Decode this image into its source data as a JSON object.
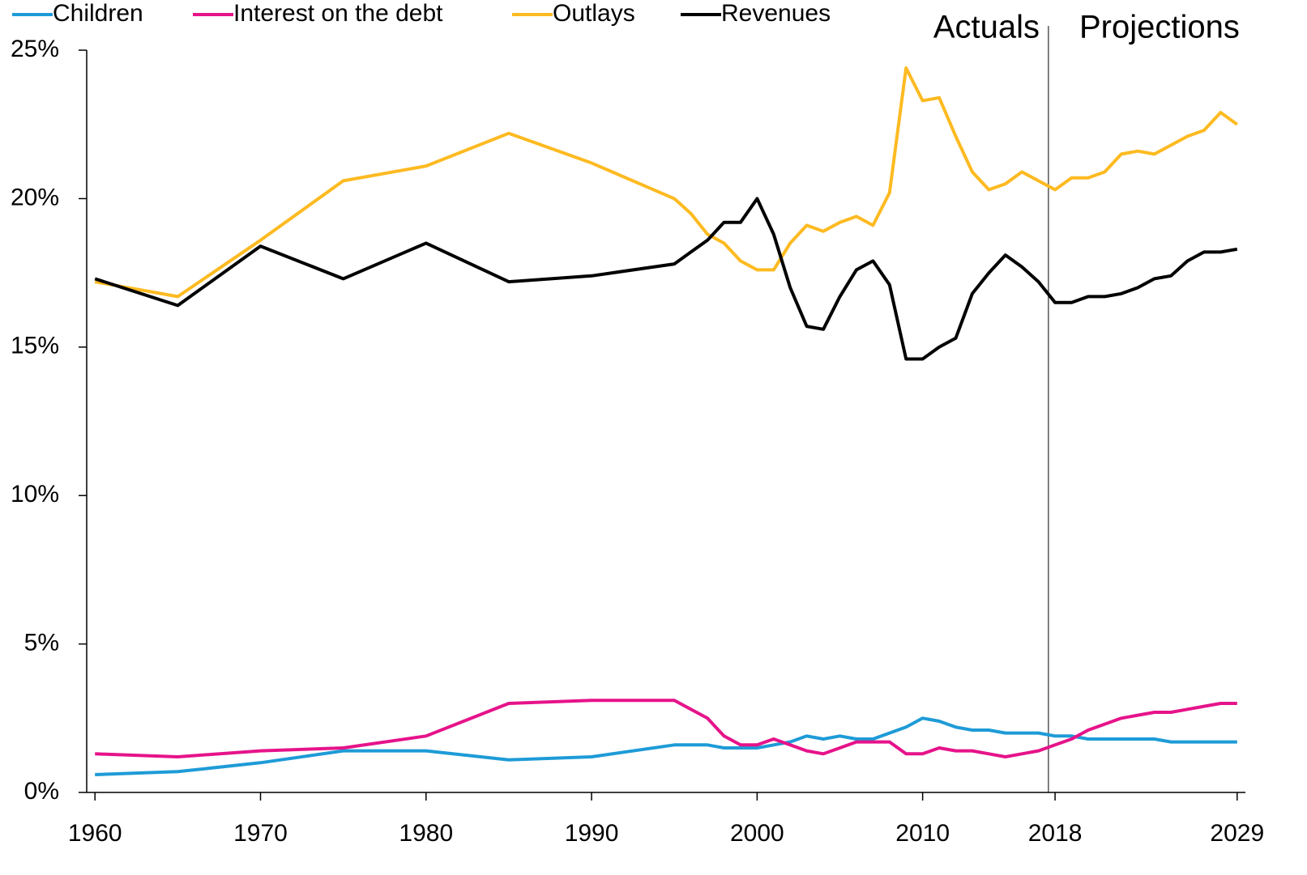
{
  "chart_data": {
    "type": "line",
    "x": [
      1960,
      1965,
      1970,
      1975,
      1980,
      1985,
      1990,
      1995,
      1996,
      1997,
      1998,
      1999,
      2000,
      2001,
      2002,
      2003,
      2004,
      2005,
      2006,
      2007,
      2008,
      2009,
      2010,
      2011,
      2012,
      2013,
      2014,
      2015,
      2016,
      2017,
      2018,
      2019,
      2020,
      2021,
      2022,
      2023,
      2024,
      2025,
      2026,
      2027,
      2028,
      2029
    ],
    "series": [
      {
        "name": "Children",
        "color": "#1e9bd7",
        "values": [
          0.6,
          0.7,
          1.0,
          1.4,
          1.4,
          1.1,
          1.2,
          1.6,
          1.6,
          1.6,
          1.5,
          1.5,
          1.5,
          1.6,
          1.7,
          1.9,
          1.8,
          1.9,
          1.8,
          1.8,
          2.0,
          2.2,
          2.5,
          2.4,
          2.2,
          2.1,
          2.1,
          2.0,
          2.0,
          2.0,
          1.9,
          1.9,
          1.8,
          1.8,
          1.8,
          1.8,
          1.8,
          1.7,
          1.7,
          1.7,
          1.7,
          1.7
        ]
      },
      {
        "name": "Interest on the debt",
        "color": "#e6138a",
        "values": [
          1.3,
          1.2,
          1.4,
          1.5,
          1.9,
          3.0,
          3.1,
          3.1,
          2.8,
          2.5,
          1.9,
          1.6,
          1.6,
          1.8,
          1.6,
          1.4,
          1.3,
          1.5,
          1.7,
          1.7,
          1.7,
          1.3,
          1.3,
          1.5,
          1.4,
          1.4,
          1.3,
          1.2,
          1.3,
          1.4,
          1.6,
          1.8,
          2.1,
          2.3,
          2.5,
          2.6,
          2.7,
          2.7,
          2.8,
          2.9,
          3.0,
          3.0
        ]
      },
      {
        "name": "Outlays",
        "color": "#fdba21",
        "values": [
          17.2,
          16.7,
          18.6,
          20.6,
          21.1,
          22.2,
          21.2,
          20.0,
          19.5,
          18.8,
          18.5,
          17.9,
          17.6,
          17.6,
          18.5,
          19.1,
          18.9,
          19.2,
          19.4,
          19.1,
          20.2,
          24.4,
          23.3,
          23.4,
          22.1,
          20.9,
          20.3,
          20.5,
          20.9,
          20.6,
          20.3,
          20.7,
          20.7,
          20.9,
          21.5,
          21.6,
          21.5,
          21.8,
          22.1,
          22.3,
          22.9,
          22.5
        ]
      },
      {
        "name": "Revenues",
        "color": "#000000",
        "values": [
          17.3,
          16.4,
          18.4,
          17.3,
          18.5,
          17.2,
          17.4,
          17.8,
          18.2,
          18.6,
          19.2,
          19.2,
          20.0,
          18.8,
          17.0,
          15.7,
          15.6,
          16.7,
          17.6,
          17.9,
          17.1,
          14.6,
          14.6,
          15.0,
          15.3,
          16.8,
          17.5,
          18.1,
          17.7,
          17.2,
          16.5,
          16.5,
          16.7,
          16.7,
          16.8,
          17.0,
          17.3,
          17.4,
          17.9,
          18.2,
          18.2,
          18.3
        ]
      }
    ],
    "xlim": [
      1959.5,
      2029.5
    ],
    "xticks": [
      1960,
      1970,
      1980,
      1990,
      2000,
      2010,
      2018,
      2029
    ],
    "ylim": [
      0,
      25
    ],
    "yticks": [
      {
        "value": 0,
        "label": "0%"
      },
      {
        "value": 5,
        "label": "5%"
      },
      {
        "value": 10,
        "label": "10%"
      },
      {
        "value": 15,
        "label": "15%"
      },
      {
        "value": 20,
        "label": "20%"
      },
      {
        "value": 25,
        "label": "25%"
      }
    ],
    "annotations": [
      "Actuals",
      "Projections"
    ],
    "vline": 2017.6,
    "legend": "top"
  }
}
